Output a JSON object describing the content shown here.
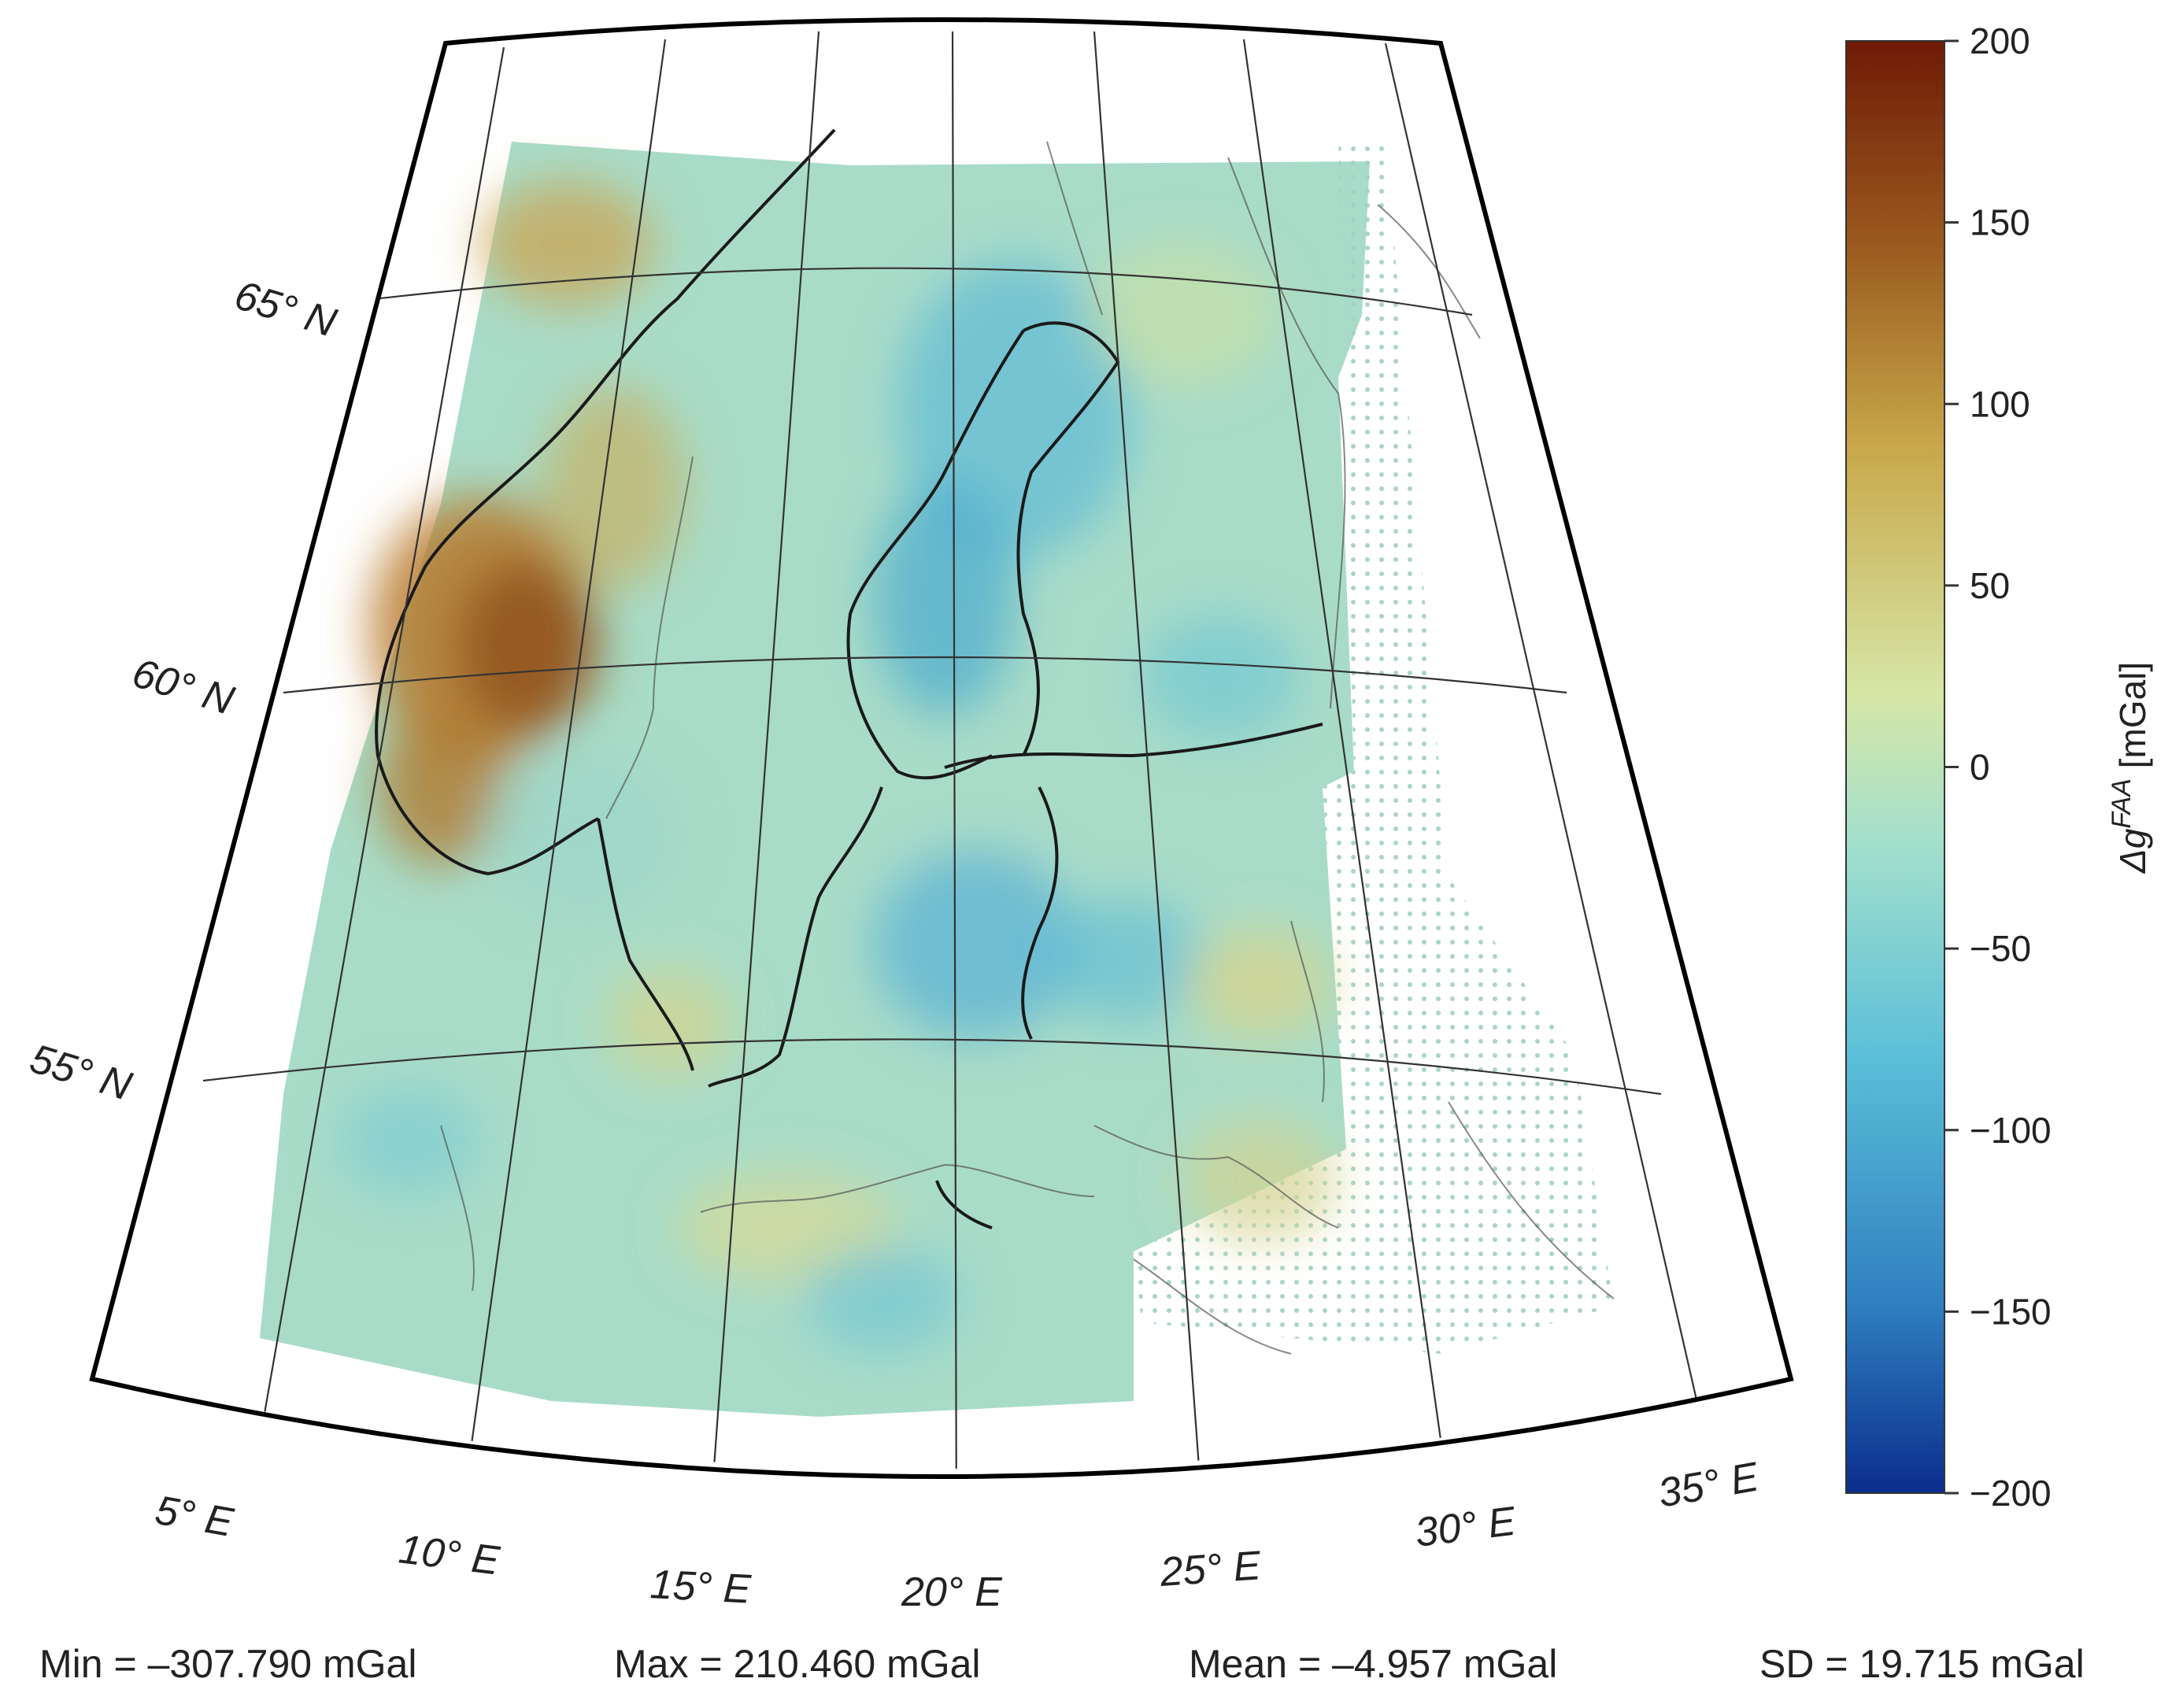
{
  "map": {
    "lat_labels": [
      "65° N",
      "60° N",
      "55° N"
    ],
    "lon_labels": [
      "5° E",
      "10° E",
      "15° E",
      "20° E",
      "25° E",
      "30° E",
      "35° E"
    ]
  },
  "colorbar": {
    "label": "Δg^FAA [mGal]",
    "label_main": "Δg",
    "label_sup": "FAA",
    "label_unit": " [mGal]",
    "ticks": [
      "200",
      "150",
      "100",
      "50",
      "0",
      "−50",
      "−100",
      "−150",
      "−200"
    ],
    "range": [
      -200,
      200
    ],
    "colormap": [
      "#0a2d8c",
      "#2f7fc0",
      "#5bbfd8",
      "#a4e0cc",
      "#d6e6a6",
      "#c8a84a",
      "#9a5a1e",
      "#6f1a06"
    ]
  },
  "stats": {
    "min": "Min = –307.790 mGal",
    "max": "Max = 210.460 mGal",
    "mean": "Mean = –4.957 mGal",
    "sd": "SD = 19.715 mGal"
  }
}
